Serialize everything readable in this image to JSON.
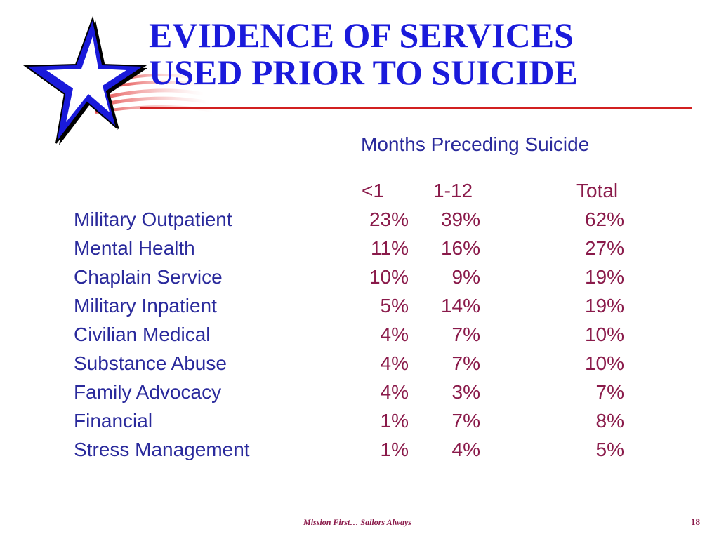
{
  "slide": {
    "title_lines": [
      "EVIDENCE OF SERVICES",
      "USED PRIOR TO SUICIDE"
    ],
    "logo_icon": "navy-star-flag-icon"
  },
  "table": {
    "caption": "Months Preceding Suicide",
    "headers": [
      "<1",
      "1-12",
      "Total"
    ],
    "rows": [
      {
        "label": "Military Outpatient",
        "lt1": "23%",
        "m1_12": "39%",
        "total": "62%"
      },
      {
        "label": "Mental Health",
        "lt1": "11%",
        "m1_12": "16%",
        "total": "27%"
      },
      {
        "label": "Chaplain Service",
        "lt1": "10%",
        "m1_12": "9%",
        "total": "19%"
      },
      {
        "label": "Military Inpatient",
        "lt1": "5%",
        "m1_12": "14%",
        "total": "19%"
      },
      {
        "label": "Civilian Medical",
        "lt1": "4%",
        "m1_12": "7%",
        "total": "10%"
      },
      {
        "label": "Substance Abuse",
        "lt1": "4%",
        "m1_12": "7%",
        "total": "10%"
      },
      {
        "label": "Family Advocacy",
        "lt1": "4%",
        "m1_12": "3%",
        "total": "7%"
      },
      {
        "label": "Financial",
        "lt1": "1%",
        "m1_12": "7%",
        "total": "8%"
      },
      {
        "label": "Stress Management",
        "lt1": "1%",
        "m1_12": "4%",
        "total": "5%"
      }
    ]
  },
  "footer": {
    "motto": "Mission First… Sailors Always",
    "page_number": "18"
  },
  "colors": {
    "title": "#1a1adb",
    "labels": "#2a2a9c",
    "values": "#8a1a4a",
    "rule": "#d22020"
  }
}
